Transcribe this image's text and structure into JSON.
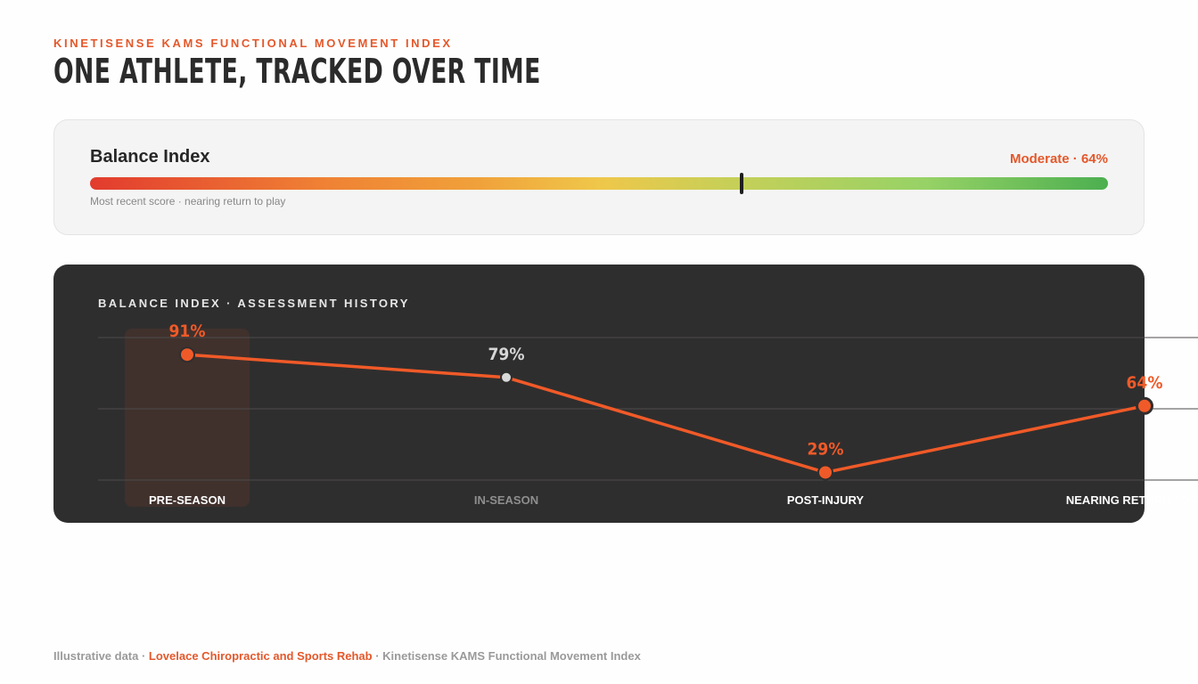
{
  "header": {
    "eyebrow": "KINETISENSE KAMS FUNCTIONAL MOVEMENT INDEX",
    "title": "ONE ATHLETE, TRACKED OVER TIME"
  },
  "score_card": {
    "label": "Balance Index",
    "status": "Moderate · 64%",
    "value": 64,
    "note": "Most recent score · nearing return to play"
  },
  "history": {
    "title": "BALANCE INDEX · ASSESSMENT HISTORY"
  },
  "chart_data": {
    "type": "line",
    "title": "BALANCE INDEX · ASSESSMENT HISTORY",
    "categories": [
      "PRE-SEASON",
      "IN-SEASON",
      "POST-INJURY",
      "NEARING RETURN TO PLAY"
    ],
    "values": [
      91,
      79,
      29,
      64
    ],
    "data_labels": [
      "91%",
      "79%",
      "29%",
      "64%"
    ],
    "highlighted_category": "PRE-SEASON",
    "ylim": [
      25,
      100
    ],
    "grid": true,
    "colors": {
      "line": "#f05a28",
      "highlight_label": "#f05a28",
      "muted_label": "#d6d6d6",
      "muted_point": "#d9d9d9"
    }
  },
  "footer": {
    "prefix": "Illustrative data · ",
    "clinic": "Lovelace Chiropractic and Sports Rehab",
    "suffix": " · Kinetisense KAMS Functional Movement Index"
  }
}
